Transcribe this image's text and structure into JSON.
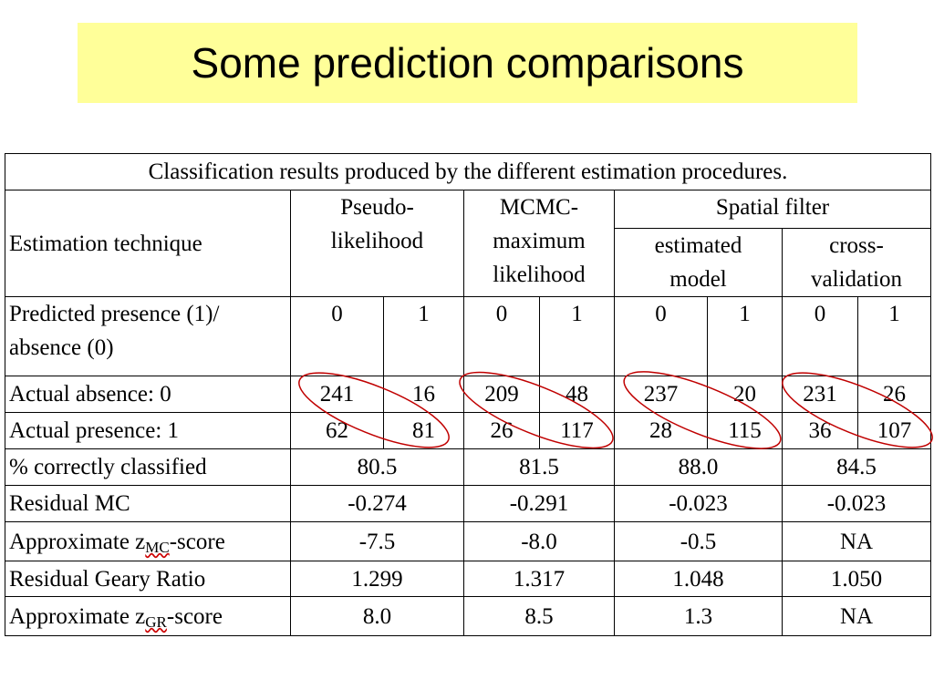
{
  "title": "Some prediction comparisons",
  "table": {
    "caption": "Classification results produced by the different estimation procedures.",
    "header": {
      "technique": "Estimation technique",
      "pseudo": "Pseudo-\nlikelihood",
      "mcmc": "MCMC-\nmaximum\nlikelihood",
      "spatial": "Spatial filter",
      "estimated": "estimated\nmodel",
      "cross": "cross-\nvalidation"
    },
    "predicted": {
      "label": "Predicted presence (1)/\nabsence (0)",
      "values": [
        0,
        1,
        0,
        1,
        0,
        1,
        0,
        1
      ]
    },
    "counts": [
      {
        "label": "Actual absence: 0",
        "values": [
          241,
          16,
          209,
          48,
          237,
          20,
          231,
          26
        ]
      },
      {
        "label": "Actual presence: 1",
        "values": [
          62,
          81,
          26,
          117,
          28,
          115,
          36,
          107
        ]
      }
    ],
    "summary": [
      {
        "label": [
          "% correctly classified"
        ],
        "values": [
          80.5,
          81.5,
          "88.0",
          84.5
        ]
      },
      {
        "label": [
          "Residual MC"
        ],
        "values": [
          -0.274,
          -0.291,
          -0.023,
          -0.023
        ]
      },
      {
        "label": [
          "Approximate z",
          "MC",
          "-score"
        ],
        "values": [
          -7.5,
          "-8.0",
          -0.5,
          "NA"
        ]
      },
      {
        "label": [
          "Residual Geary Ratio"
        ],
        "values": [
          1.299,
          1.317,
          1.048,
          "1.050"
        ]
      },
      {
        "label": [
          "Approximate z",
          "GR",
          "-score"
        ],
        "values": [
          "8.0",
          8.5,
          1.3,
          "NA"
        ]
      }
    ]
  }
}
